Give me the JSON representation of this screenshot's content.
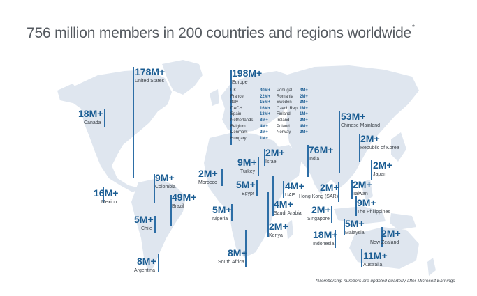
{
  "title": "756 million members in 200 countries and regions worldwide",
  "title_mark": "*",
  "footnote": "*Membership numbers are updated quarterly after Microsoft Earnings",
  "colors": {
    "land": "#dfe6ef",
    "accent": "#1b5d93",
    "line": "#2d6ea6"
  },
  "markers": [
    {
      "id": "united-states",
      "value": "178M+",
      "label": "United States"
    },
    {
      "id": "canada",
      "value": "18M+",
      "label": "Canada"
    },
    {
      "id": "mexico",
      "value": "16M+",
      "label": "Mexico"
    },
    {
      "id": "colombia",
      "value": "9M+",
      "label": "Colombia"
    },
    {
      "id": "brazil",
      "value": "49M+",
      "label": "Brazil"
    },
    {
      "id": "chile",
      "value": "5M+",
      "label": "Chile"
    },
    {
      "id": "argentina",
      "value": "8M+",
      "label": "Argentina"
    },
    {
      "id": "europe",
      "value": "198M+",
      "label": "Europe"
    },
    {
      "id": "morocco",
      "value": "2M+",
      "label": "Morocco"
    },
    {
      "id": "turkey",
      "value": "9M+",
      "label": "Turkey"
    },
    {
      "id": "israel",
      "value": "2M+",
      "label": "Israel"
    },
    {
      "id": "egypt",
      "value": "5M+",
      "label": "Egypt"
    },
    {
      "id": "nigeria",
      "value": "5M+",
      "label": "Nigeria"
    },
    {
      "id": "uae",
      "value": "4M+",
      "label": "UAE"
    },
    {
      "id": "saudi-arabia",
      "value": "4M+",
      "label": "Saudi Arabia"
    },
    {
      "id": "kenya",
      "value": "2M+",
      "label": "Kenya"
    },
    {
      "id": "south-africa",
      "value": "8M+",
      "label": "South Africa"
    },
    {
      "id": "india",
      "value": "76M+",
      "label": "India"
    },
    {
      "id": "chinese-mainland",
      "value": "53M+",
      "label": "Chinese Mainland"
    },
    {
      "id": "korea",
      "value": "2M+",
      "label": "Republic of Korea"
    },
    {
      "id": "japan",
      "value": "2M+",
      "label": "Japan"
    },
    {
      "id": "hong-kong",
      "value": "2M+",
      "label": "Hong Kong (SAR)"
    },
    {
      "id": "taiwan",
      "value": "2M+",
      "label": "Taiwan"
    },
    {
      "id": "philippines",
      "value": "9M+",
      "label": "The Philippines"
    },
    {
      "id": "singapore",
      "value": "2M+",
      "label": "Singapore"
    },
    {
      "id": "indonesia",
      "value": "18M+",
      "label": "Indonesia"
    },
    {
      "id": "malaysia",
      "value": "5M+",
      "label": "Malaysia"
    },
    {
      "id": "new-zealand",
      "value": "2M+",
      "label": "New Zealand"
    },
    {
      "id": "australia",
      "value": "11M+",
      "label": "Australia"
    }
  ],
  "europe_rows": [
    {
      "c1": "UK",
      "v1": "30M+",
      "c2": "Portugal",
      "v2": "3M+"
    },
    {
      "c1": "France",
      "v1": "22M+",
      "c2": "Romania",
      "v2": "2M+"
    },
    {
      "c1": "Italy",
      "v1": "15M+",
      "c2": "Sweden",
      "v2": "3M+"
    },
    {
      "c1": "DACH",
      "v1": "16M+",
      "c2": "Czech Rep.",
      "v2": "1M+"
    },
    {
      "c1": "Spain",
      "v1": "13M+",
      "c2": "Finland",
      "v2": "1M+"
    },
    {
      "c1": "Netherlands",
      "v1": "8M+",
      "c2": "Ireland",
      "v2": "2M+"
    },
    {
      "c1": "Belgium",
      "v1": "4M+",
      "c2": "Poland",
      "v2": "4M+"
    },
    {
      "c1": "Denmark",
      "v1": "2M+",
      "c2": "Norway",
      "v2": "2M+"
    },
    {
      "c1": "Hungary",
      "v1": "1M+",
      "c2": "",
      "v2": ""
    }
  ]
}
